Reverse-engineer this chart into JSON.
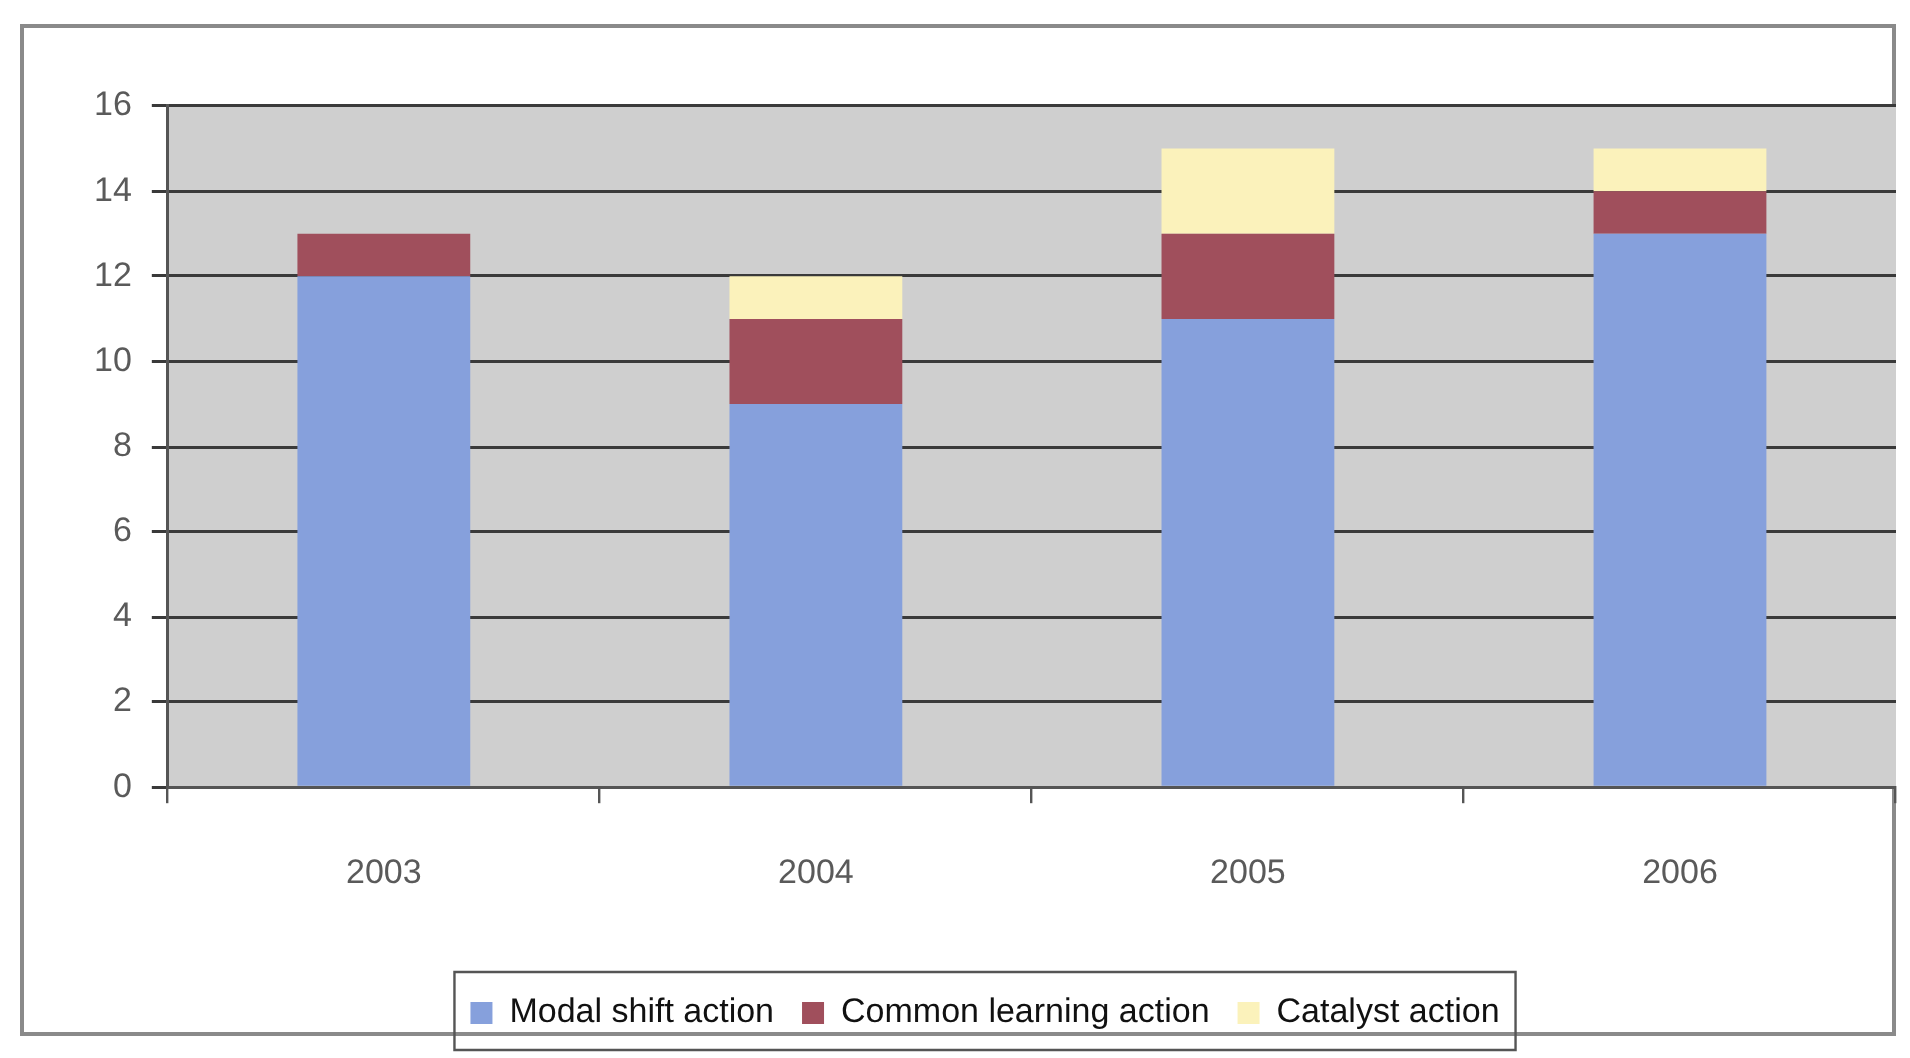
{
  "chart_data": {
    "type": "bar",
    "stacked": true,
    "categories": [
      "2003",
      "2004",
      "2005",
      "2006"
    ],
    "series": [
      {
        "name": "Modal shift action",
        "color": "#86a0dc",
        "values": [
          12,
          9,
          11,
          13
        ]
      },
      {
        "name": "Common learning action",
        "color": "#a04f5c",
        "values": [
          1,
          2,
          2,
          1
        ]
      },
      {
        "name": "Catalyst action",
        "color": "#fbf2bb",
        "values": [
          null,
          1,
          2,
          1
        ]
      }
    ],
    "ylim": [
      0,
      16
    ],
    "yticks": [
      0,
      2,
      4,
      6,
      8,
      10,
      12,
      14,
      16
    ],
    "grid": "y",
    "legend": "bottom"
  }
}
